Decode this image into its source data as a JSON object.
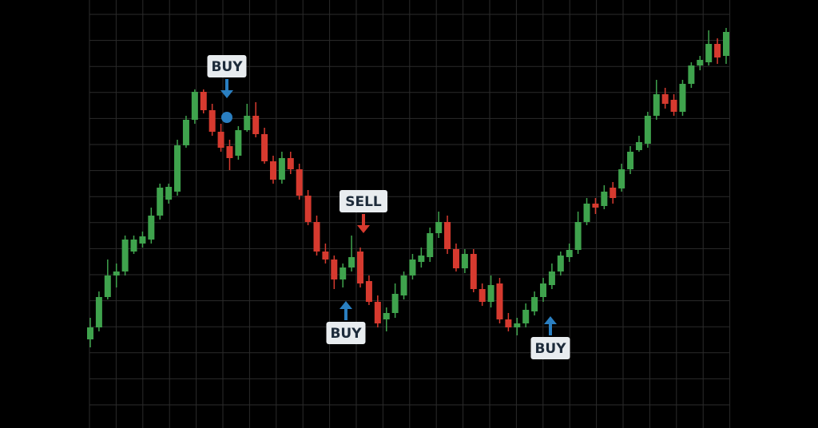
{
  "chart_data": {
    "type": "candlestick",
    "up_color": "#3fa34d",
    "down_color": "#d63a2f",
    "grid": true,
    "ylim": [
      0,
      536
    ],
    "open": [
      111,
      126,
      164,
      191,
      196,
      221,
      231,
      236,
      266,
      286,
      296,
      354,
      386,
      421,
      398,
      371,
      353,
      341,
      373,
      391,
      368,
      334,
      311,
      338,
      324,
      291,
      258,
      221,
      211,
      186,
      201,
      221,
      184,
      158,
      136,
      144,
      166,
      191,
      208,
      214,
      244,
      258,
      224,
      200,
      218,
      174,
      158,
      181,
      136,
      126,
      131,
      146,
      164,
      179,
      196,
      214,
      223,
      258,
      281,
      278,
      301,
      300,
      324,
      348,
      356,
      391,
      418,
      411,
      396,
      431,
      454,
      458,
      481,
      466
    ],
    "high": [
      138,
      171,
      211,
      206,
      241,
      241,
      246,
      276,
      306,
      306,
      361,
      391,
      424,
      424,
      406,
      381,
      361,
      378,
      406,
      408,
      376,
      341,
      346,
      346,
      331,
      298,
      266,
      231,
      216,
      206,
      241,
      226,
      191,
      166,
      151,
      181,
      196,
      218,
      226,
      251,
      271,
      266,
      231,
      224,
      224,
      181,
      191,
      188,
      144,
      138,
      156,
      171,
      188,
      206,
      221,
      231,
      271,
      288,
      288,
      304,
      308,
      331,
      353,
      366,
      396,
      436,
      426,
      418,
      436,
      458,
      466,
      498,
      488,
      501
    ],
    "low": [
      101,
      121,
      161,
      176,
      191,
      218,
      226,
      231,
      261,
      281,
      291,
      351,
      381,
      394,
      366,
      346,
      323,
      336,
      371,
      364,
      331,
      306,
      306,
      318,
      286,
      254,
      216,
      206,
      174,
      176,
      196,
      176,
      154,
      126,
      121,
      138,
      161,
      186,
      201,
      208,
      238,
      218,
      196,
      194,
      170,
      153,
      151,
      131,
      121,
      116,
      126,
      141,
      158,
      174,
      191,
      208,
      218,
      254,
      268,
      274,
      281,
      296,
      318,
      346,
      351,
      386,
      400,
      391,
      391,
      426,
      448,
      454,
      456,
      456
    ],
    "close": [
      126,
      164,
      191,
      196,
      236,
      236,
      240,
      266,
      301,
      302,
      354,
      386,
      421,
      398,
      371,
      351,
      338,
      373,
      391,
      368,
      334,
      311,
      338,
      324,
      291,
      258,
      221,
      211,
      186,
      201,
      214,
      181,
      158,
      131,
      144,
      168,
      191,
      211,
      216,
      244,
      258,
      224,
      200,
      218,
      174,
      158,
      179,
      136,
      126,
      131,
      148,
      164,
      181,
      196,
      216,
      223,
      258,
      281,
      276,
      296,
      288,
      324,
      346,
      358,
      391,
      418,
      406,
      396,
      431,
      454,
      461,
      481,
      464,
      496
    ],
    "annotations": [
      {
        "text": "BUY",
        "color": "#2a7fc1"
      },
      {
        "text": "SELL",
        "color": "#d63a2f"
      },
      {
        "text": "BUY",
        "color": "#2a7fc1"
      },
      {
        "text": "BUY",
        "color": "#2a7fc1"
      }
    ],
    "marker_color": "#2a7fc1"
  }
}
